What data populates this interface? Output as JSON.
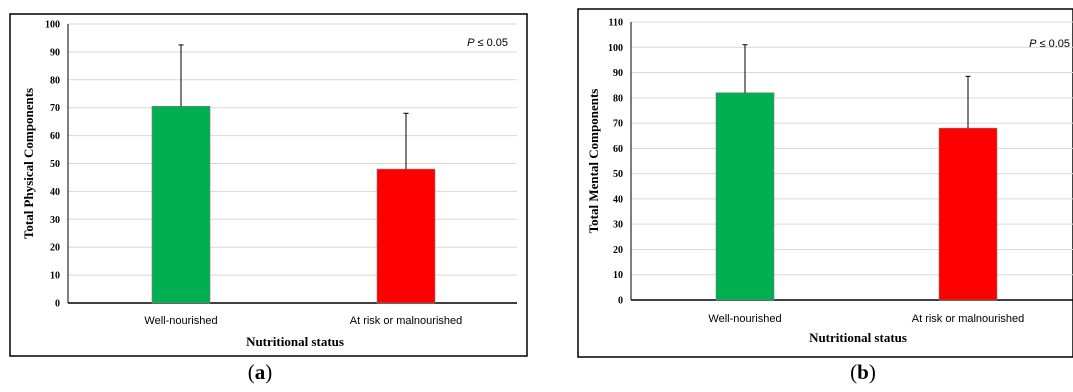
{
  "chart_data": [
    {
      "type": "bar",
      "panel_label": "a",
      "categories": [
        "Well-nourished",
        "At risk or malnourished"
      ],
      "values": [
        70.5,
        48
      ],
      "error_bars": [
        22,
        20
      ],
      "colors": [
        "#00b050",
        "#ff0000"
      ],
      "xlabel": "Nutritional status",
      "ylabel": "Total Physical Components",
      "ylim": [
        0,
        100
      ],
      "yticks": [
        0,
        10,
        20,
        30,
        40,
        50,
        60,
        70,
        80,
        90,
        100
      ],
      "annotation": {
        "italic": "P",
        "rest": " ≤ 0.05"
      },
      "grid": true,
      "legend": "none"
    },
    {
      "type": "bar",
      "panel_label": "b",
      "categories": [
        "Well-nourished",
        "At risk or malnourished"
      ],
      "values": [
        82,
        68
      ],
      "error_bars": [
        19,
        20.5
      ],
      "colors": [
        "#00b050",
        "#ff0000"
      ],
      "xlabel": "Nutritional status",
      "ylabel": "Total Mental Components",
      "ylim": [
        0,
        110
      ],
      "yticks": [
        0,
        10,
        20,
        30,
        40,
        50,
        60,
        70,
        80,
        90,
        100,
        110
      ],
      "annotation": {
        "italic": "P",
        "rest": " ≤ 0.05"
      },
      "grid": true,
      "legend": "none"
    }
  ]
}
